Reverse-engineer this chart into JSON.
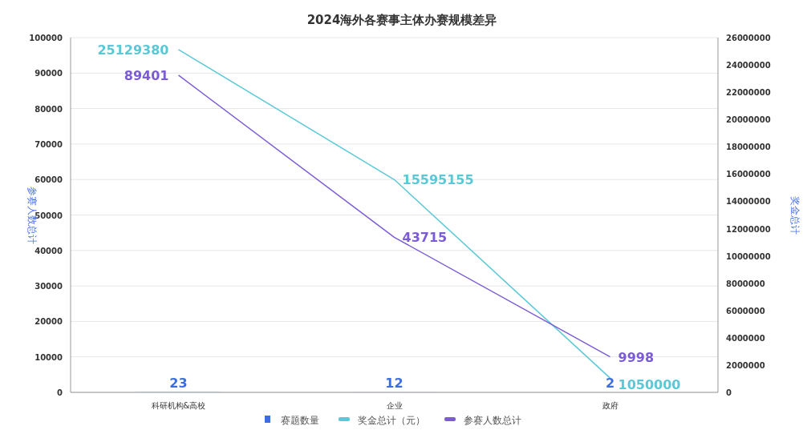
{
  "chart_data": {
    "type": "line",
    "title": "2024海外各赛事主体办赛规模差异",
    "ylabel": "参赛人数总计",
    "y2label": "奖金总计",
    "categories": [
      "科研机构&高校",
      "企业",
      "政府"
    ],
    "series": [
      {
        "name": "赛题数量",
        "type": "bar",
        "color": "#3b6fe0",
        "values": [
          23,
          12,
          2
        ]
      },
      {
        "name": "奖金总计（元）",
        "axis": "y2",
        "color": "#5cc8d6",
        "values": [
          25129380,
          15595155,
          1050000
        ]
      },
      {
        "name": "参赛人数总计",
        "color": "#7b5cd6",
        "values": [
          89401,
          43715,
          9998
        ]
      }
    ],
    "ylim": [
      0,
      100000
    ],
    "yticks": [
      0,
      10000,
      20000,
      30000,
      40000,
      50000,
      60000,
      70000,
      80000,
      90000,
      100000
    ],
    "y2lim": [
      0,
      26000000
    ],
    "y2ticks": [
      0,
      2000000,
      4000000,
      6000000,
      8000000,
      10000000,
      12000000,
      14000000,
      16000000,
      18000000,
      20000000,
      22000000,
      24000000,
      26000000
    ],
    "grid": "y",
    "legend": "bottom",
    "data_labels": true,
    "marker": "none",
    "line_style": "solid"
  }
}
